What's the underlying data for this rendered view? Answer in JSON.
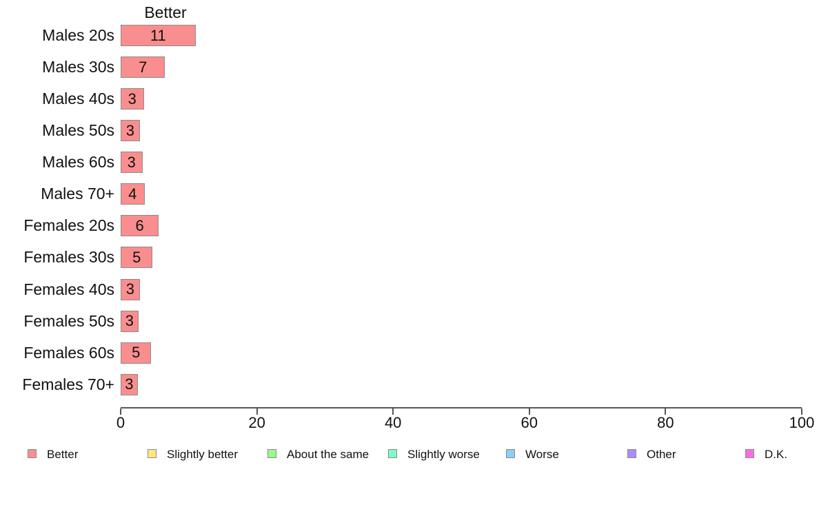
{
  "chart_data": {
    "type": "bar",
    "orientation": "horizontal",
    "title": "Better",
    "categories": [
      "Males 20s",
      "Males 30s",
      "Males 40s",
      "Males 50s",
      "Males 60s",
      "Males 70+",
      "Females 20s",
      "Females 30s",
      "Females 40s",
      "Females 50s",
      "Females 60s",
      "Females 70+"
    ],
    "values": [
      11,
      7,
      3,
      3,
      3,
      4,
      6,
      5,
      3,
      3,
      5,
      3
    ],
    "bar_values": [
      11.0,
      6.5,
      3.4,
      2.8,
      3.2,
      3.5,
      5.6,
      4.7,
      2.8,
      2.6,
      4.5,
      2.5
    ],
    "xlim": [
      0,
      100
    ],
    "x_ticks": [
      0,
      20,
      40,
      60,
      80,
      100
    ],
    "grid": false,
    "bar_color": "#FA8E8E",
    "bar_border_color": "#8A8A8A",
    "axis_color": "#555555",
    "legend_position": "bottom",
    "legend": [
      {
        "label": "Better",
        "color": "#FA8E8E"
      },
      {
        "label": "Slightly better",
        "color": "#FFE782"
      },
      {
        "label": "About the same",
        "color": "#9BF88A"
      },
      {
        "label": "Slightly worse",
        "color": "#7EFACB"
      },
      {
        "label": "Worse",
        "color": "#89CFF7"
      },
      {
        "label": "Other",
        "color": "#AB8EF7"
      },
      {
        "label": "D.K.",
        "color": "#F96FE3"
      }
    ]
  }
}
